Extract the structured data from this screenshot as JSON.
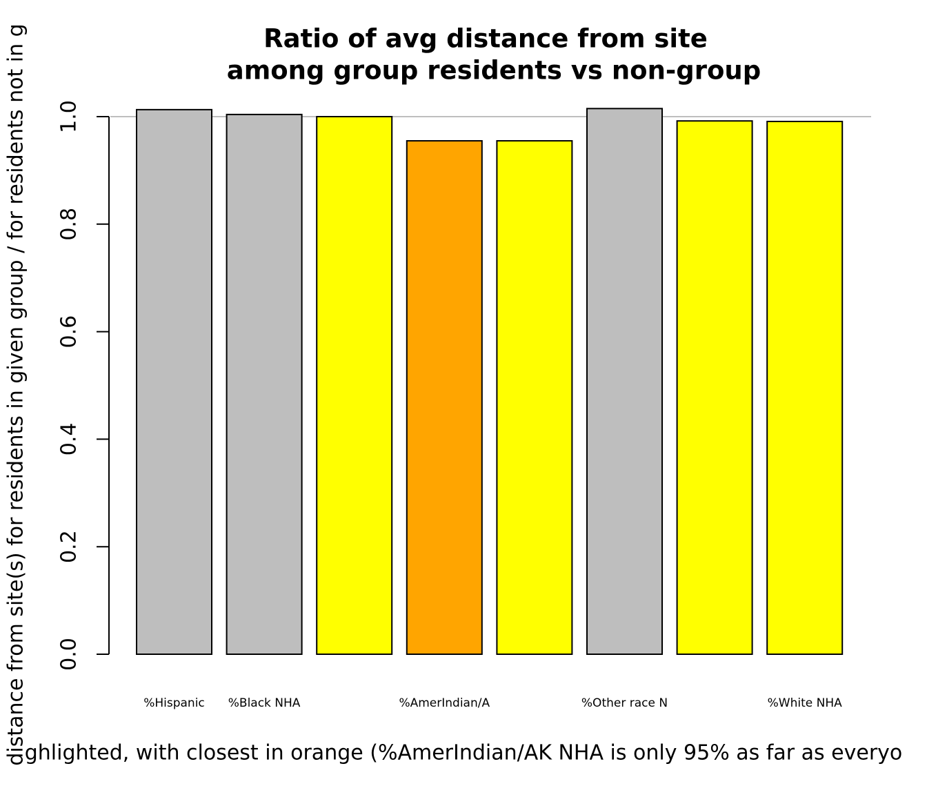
{
  "chart_data": {
    "type": "bar",
    "title": [
      "Ratio of avg distance from site",
      "among group residents vs non-group"
    ],
    "y_label": "distance from site(s) for residents in given group / for residents not in g",
    "x_label": "ghlighted, with closest in orange (%AmerIndian/AK NHA is only 95% as far as everyo",
    "categories": [
      "%Hispanic",
      "%Black NHA",
      null,
      "%AmerIndian/A",
      null,
      "%Other race N",
      null,
      "%White NHA"
    ],
    "values": [
      1.013,
      1.004,
      1.0,
      0.955,
      0.955,
      1.015,
      0.992,
      0.991
    ],
    "colors": [
      "#bebebe",
      "#bebebe",
      "#ffff00",
      "#ffa500",
      "#ffff00",
      "#bebebe",
      "#ffff00",
      "#ffff00"
    ],
    "reference_line": 1,
    "ylim": [
      0,
      1
    ],
    "yticks": [
      {
        "value": 0,
        "label": "0.0"
      },
      {
        "value": 0.2,
        "label": "0.2"
      },
      {
        "value": 0.4,
        "label": "0.4"
      },
      {
        "value": 0.6,
        "label": "0.6"
      },
      {
        "value": 0.8,
        "label": "0.8"
      },
      {
        "value": 1,
        "label": "1.0"
      }
    ]
  }
}
